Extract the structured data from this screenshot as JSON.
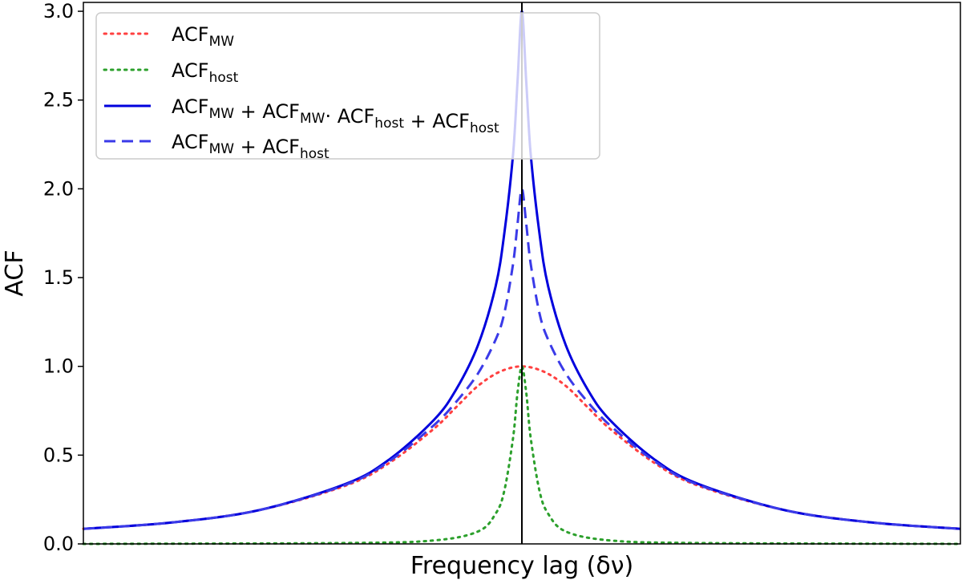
{
  "chart_data": {
    "type": "line",
    "xlabel": "Frequency lag (δν)",
    "ylabel": "ACF",
    "ylim": [
      0,
      3.05
    ],
    "yticks": [
      "0.0",
      "0.5",
      "1.0",
      "1.5",
      "2.0",
      "2.5",
      "3.0"
    ],
    "xticks": [],
    "grid": false,
    "legend_position": "top-left",
    "series": [
      {
        "name": "ACF_MW",
        "legend": {
          "base": "ACF",
          "sub": "MW",
          "rest": []
        },
        "color": "#ff4040",
        "style": "dotted",
        "x": [
          -1.0,
          -0.8,
          -0.6,
          -0.4,
          -0.3,
          -0.2,
          -0.15,
          -0.1,
          -0.05,
          0.0,
          0.05,
          0.1,
          0.15,
          0.2,
          0.3,
          0.4,
          0.6,
          0.8,
          1.0
        ],
        "y": [
          0.085,
          0.12,
          0.19,
          0.33,
          0.46,
          0.65,
          0.77,
          0.89,
          0.97,
          1.0,
          0.97,
          0.89,
          0.77,
          0.65,
          0.46,
          0.33,
          0.19,
          0.12,
          0.085
        ]
      },
      {
        "name": "ACF_host",
        "legend": {
          "base": "ACF",
          "sub": "host",
          "rest": []
        },
        "color": "#2ca02c",
        "style": "dotted",
        "x": [
          -1.0,
          -0.4,
          -0.2,
          -0.1,
          -0.06,
          -0.04,
          -0.02,
          -0.01,
          0.0,
          0.01,
          0.02,
          0.04,
          0.06,
          0.1,
          0.2,
          0.4,
          1.0
        ],
        "y": [
          0.0,
          0.005,
          0.02,
          0.07,
          0.17,
          0.3,
          0.6,
          0.85,
          1.0,
          0.85,
          0.6,
          0.3,
          0.17,
          0.07,
          0.02,
          0.005,
          0.0
        ]
      },
      {
        "name": "ACF_MW + ACF_MW · ACF_host + ACF_host",
        "legend": {
          "base": "ACF",
          "sub": "MW",
          "rest": [
            [
              " + ACF",
              "MW"
            ],
            [
              "·  ACF",
              "host"
            ],
            [
              " + ACF",
              "host"
            ]
          ]
        },
        "color": "#0000dd",
        "style": "solid",
        "x": [
          -1.0,
          -0.8,
          -0.6,
          -0.4,
          -0.3,
          -0.2,
          -0.15,
          -0.1,
          -0.06,
          -0.04,
          -0.02,
          -0.01,
          0.0,
          0.01,
          0.02,
          0.04,
          0.06,
          0.1,
          0.15,
          0.2,
          0.3,
          0.4,
          0.6,
          0.8,
          1.0
        ],
        "y": [
          0.085,
          0.12,
          0.19,
          0.34,
          0.48,
          0.7,
          0.87,
          1.12,
          1.45,
          1.75,
          2.2,
          2.6,
          3.0,
          2.6,
          2.2,
          1.75,
          1.45,
          1.12,
          0.87,
          0.7,
          0.48,
          0.34,
          0.19,
          0.12,
          0.085
        ]
      },
      {
        "name": "ACF_MW + ACF_host",
        "legend": {
          "base": "ACF",
          "sub": "MW",
          "rest": [
            [
              " + ACF",
              "host"
            ]
          ]
        },
        "color": "#3a3ae8",
        "style": "dashed",
        "x": [
          -1.0,
          -0.8,
          -0.6,
          -0.4,
          -0.3,
          -0.2,
          -0.15,
          -0.1,
          -0.06,
          -0.04,
          -0.02,
          -0.01,
          0.0,
          0.01,
          0.02,
          0.04,
          0.06,
          0.1,
          0.15,
          0.2,
          0.3,
          0.4,
          0.6,
          0.8,
          1.0
        ],
        "y": [
          0.085,
          0.12,
          0.19,
          0.335,
          0.47,
          0.67,
          0.8,
          0.96,
          1.15,
          1.3,
          1.58,
          1.8,
          2.0,
          1.8,
          1.58,
          1.3,
          1.15,
          0.96,
          0.8,
          0.67,
          0.47,
          0.335,
          0.19,
          0.12,
          0.085
        ]
      }
    ],
    "reference_line": {
      "x": 0.0,
      "color": "#000000"
    }
  }
}
